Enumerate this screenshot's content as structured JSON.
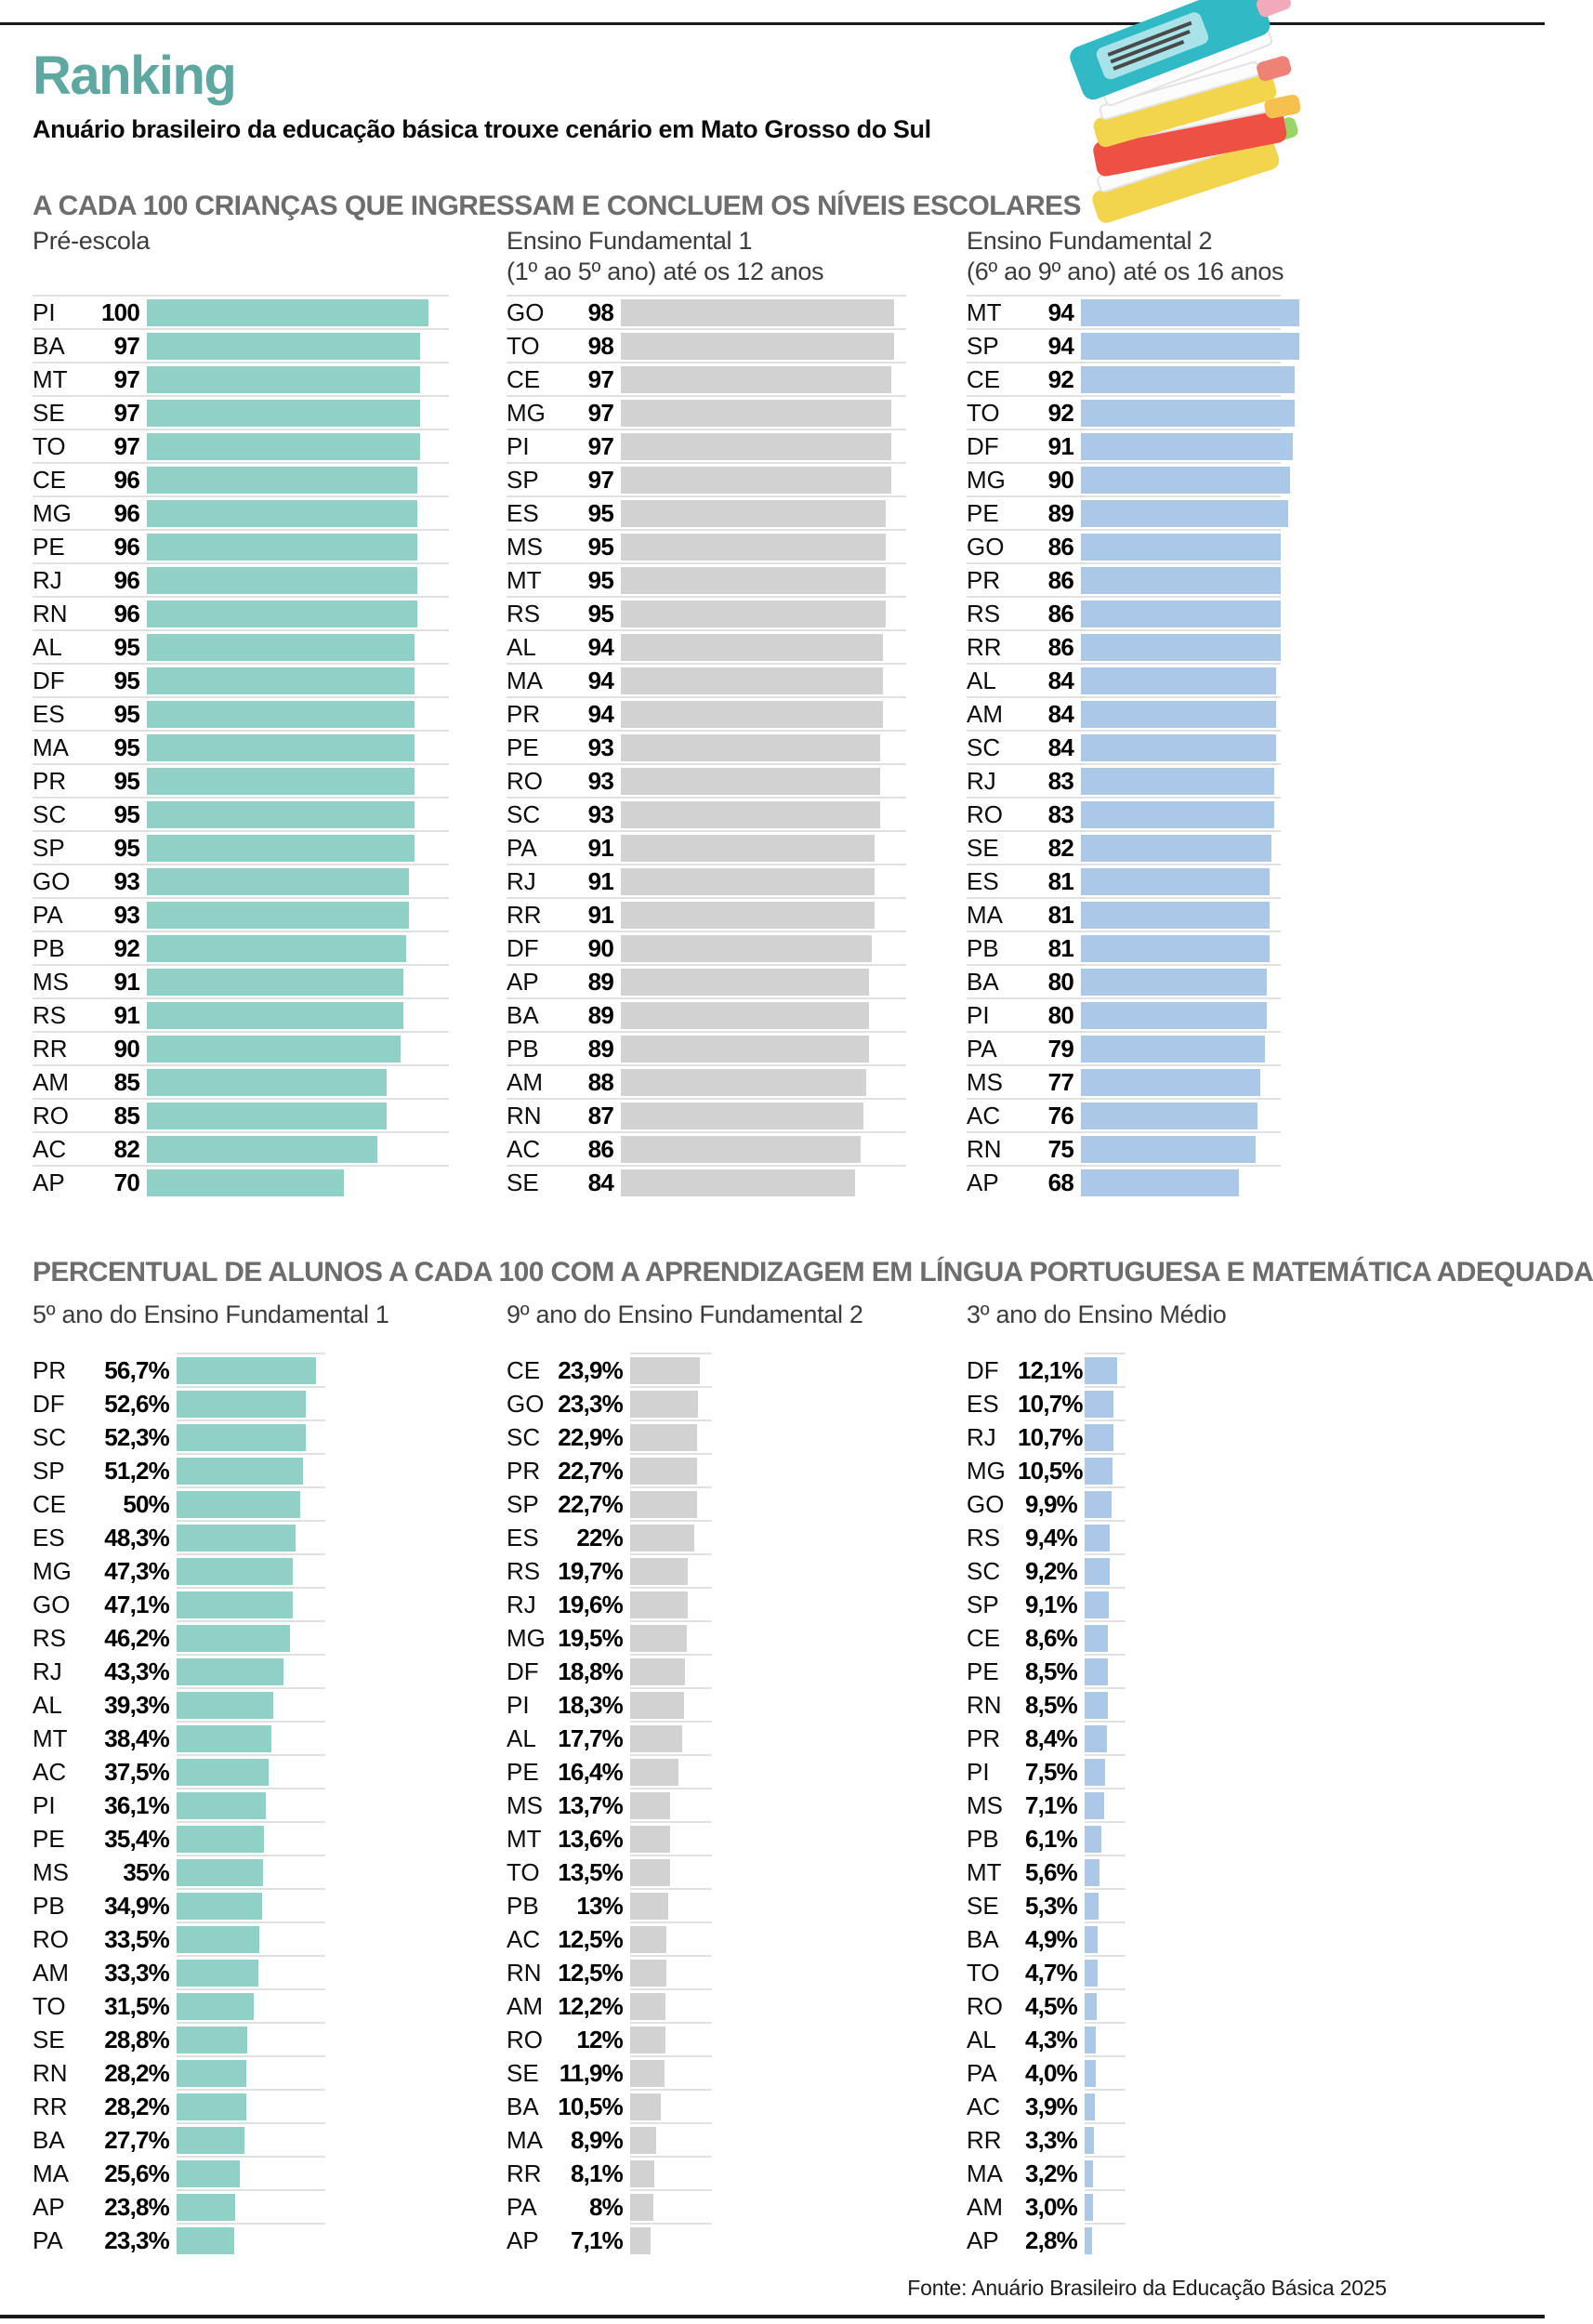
{
  "header": {
    "title": "Ranking",
    "subtitle": "Anuário brasileiro da educação básica trouxe cenário em Mato Grosso do Sul"
  },
  "sections": [
    {
      "heading": "A CADA 100 CRIANÇAS QUE INGRESSAM E CONCLUEM OS NÍVEIS ESCOLARES"
    },
    {
      "heading": "PERCENTUAL DE ALUNOS A CADA 100 COM A APRENDIZAGEM EM LÍNGUA PORTUGUESA E MATEMÁTICA ADEQUADA"
    }
  ],
  "colors": {
    "accent_teal": "#5fa8a1",
    "bar_teal": "#8fd1c6",
    "bar_gray": "#d2d2d2",
    "bar_blue": "#abc8e8",
    "heading_gray": "#6d6d6d",
    "rule_dark": "#191919"
  },
  "icons": {
    "header_illustration": "books-stack-icon"
  },
  "chart_data": [
    {
      "type": "bar",
      "section": 0,
      "title": "Pré-escola",
      "subtitle": "",
      "unit": "per 100",
      "xlim": [
        0,
        100
      ],
      "grid": false,
      "legend": "none",
      "bar_color_key": "bar_teal",
      "categories": [
        "PI",
        "BA",
        "MT",
        "SE",
        "TO",
        "CE",
        "MG",
        "PE",
        "RJ",
        "RN",
        "AL",
        "DF",
        "ES",
        "MA",
        "PR",
        "SC",
        "SP",
        "GO",
        "PA",
        "PB",
        "MS",
        "RS",
        "RR",
        "AM",
        "RO",
        "AC",
        "AP"
      ],
      "values": [
        100,
        97,
        97,
        97,
        97,
        96,
        96,
        96,
        96,
        96,
        95,
        95,
        95,
        95,
        95,
        95,
        95,
        93,
        93,
        92,
        91,
        91,
        90,
        85,
        85,
        82,
        70
      ],
      "value_labels": [
        "100",
        "97",
        "97",
        "97",
        "97",
        "96",
        "96",
        "96",
        "96",
        "96",
        "95",
        "95",
        "95",
        "95",
        "95",
        "95",
        "95",
        "93",
        "93",
        "92",
        "91",
        "91",
        "90",
        "85",
        "85",
        "82",
        "70"
      ]
    },
    {
      "type": "bar",
      "section": 0,
      "title": "Ensino Fundamental 1",
      "subtitle": "(1º ao 5º ano) até os 12 anos",
      "unit": "per 100",
      "xlim": [
        0,
        100
      ],
      "grid": false,
      "legend": "none",
      "bar_color_key": "bar_gray",
      "categories": [
        "GO",
        "TO",
        "CE",
        "MG",
        "PI",
        "SP",
        "ES",
        "MS",
        "MT",
        "RS",
        "AL",
        "MA",
        "PR",
        "PE",
        "RO",
        "SC",
        "PA",
        "RJ",
        "RR",
        "DF",
        "AP",
        "BA",
        "PB",
        "AM",
        "RN",
        "AC",
        "SE"
      ],
      "values": [
        98,
        98,
        97,
        97,
        97,
        97,
        95,
        95,
        95,
        95,
        94,
        94,
        94,
        93,
        93,
        93,
        91,
        91,
        91,
        90,
        89,
        89,
        89,
        88,
        87,
        86,
        84
      ],
      "value_labels": [
        "98",
        "98",
        "97",
        "97",
        "97",
        "97",
        "95",
        "95",
        "95",
        "95",
        "94",
        "94",
        "94",
        "93",
        "93",
        "93",
        "91",
        "91",
        "91",
        "90",
        "89",
        "89",
        "89",
        "88",
        "87",
        "86",
        "84"
      ]
    },
    {
      "type": "bar",
      "section": 0,
      "title": "Ensino Fundamental 2",
      "subtitle": "(6º ao 9º ano) até os 16 anos",
      "unit": "per 100",
      "xlim": [
        0,
        100
      ],
      "grid": false,
      "legend": "none",
      "bar_color_key": "bar_blue",
      "categories": [
        "MT",
        "SP",
        "CE",
        "TO",
        "DF",
        "MG",
        "PE",
        "GO",
        "PR",
        "RS",
        "RR",
        "AL",
        "AM",
        "SC",
        "RJ",
        "RO",
        "SE",
        "ES",
        "MA",
        "PB",
        "BA",
        "PI",
        "PA",
        "MS",
        "AC",
        "RN",
        "AP"
      ],
      "values": [
        94,
        94,
        92,
        92,
        91,
        90,
        89,
        86,
        86,
        86,
        86,
        84,
        84,
        84,
        83,
        83,
        82,
        81,
        81,
        81,
        80,
        80,
        79,
        77,
        76,
        75,
        68
      ],
      "value_labels": [
        "94",
        "94",
        "92",
        "92",
        "91",
        "90",
        "89",
        "86",
        "86",
        "86",
        "86",
        "84",
        "84",
        "84",
        "83",
        "83",
        "82",
        "81",
        "81",
        "81",
        "80",
        "80",
        "79",
        "77",
        "76",
        "75",
        "68"
      ]
    },
    {
      "type": "bar",
      "section": 1,
      "title": "5º ano do Ensino Fundamental 1",
      "subtitle": "",
      "unit": "%",
      "xlim": [
        0,
        60
      ],
      "grid": false,
      "legend": "none",
      "bar_color_key": "bar_teal",
      "categories": [
        "PR",
        "DF",
        "SC",
        "SP",
        "CE",
        "ES",
        "MG",
        "GO",
        "RS",
        "RJ",
        "AL",
        "MT",
        "AC",
        "PI",
        "PE",
        "MS",
        "PB",
        "RO",
        "AM",
        "TO",
        "SE",
        "RN",
        "RR",
        "BA",
        "MA",
        "AP",
        "PA"
      ],
      "values": [
        56.7,
        52.6,
        52.3,
        51.2,
        50,
        48.3,
        47.3,
        47.1,
        46.2,
        43.3,
        39.3,
        38.4,
        37.5,
        36.1,
        35.4,
        35,
        34.9,
        33.5,
        33.3,
        31.5,
        28.8,
        28.2,
        28.2,
        27.7,
        25.6,
        23.8,
        23.3
      ],
      "value_labels": [
        "56,7%",
        "52,6%",
        "52,3%",
        "51,2%",
        "50%",
        "48,3%",
        "47,3%",
        "47,1%",
        "46,2%",
        "43,3%",
        "39,3%",
        "38,4%",
        "37,5%",
        "36,1%",
        "35,4%",
        "35%",
        "34,9%",
        "33,5%",
        "33,3%",
        "31,5%",
        "28,8%",
        "28,2%",
        "28,2%",
        "27,7%",
        "25,6%",
        "23,8%",
        "23,3%"
      ]
    },
    {
      "type": "bar",
      "section": 1,
      "title": "9º ano do Ensino Fundamental 2",
      "subtitle": "",
      "unit": "%",
      "xlim": [
        0,
        25
      ],
      "grid": false,
      "legend": "none",
      "bar_color_key": "bar_gray",
      "categories": [
        "CE",
        "GO",
        "SC",
        "PR",
        "SP",
        "ES",
        "RS",
        "RJ",
        "MG",
        "DF",
        "PI",
        "AL",
        "PE",
        "MS",
        "MT",
        "TO",
        "PB",
        "AC",
        "RN",
        "AM",
        "RO",
        "SE",
        "BA",
        "MA",
        "RR",
        "PA",
        "AP"
      ],
      "values": [
        23.9,
        23.3,
        22.9,
        22.7,
        22.7,
        22,
        19.7,
        19.6,
        19.5,
        18.8,
        18.3,
        17.7,
        16.4,
        13.7,
        13.6,
        13.5,
        13,
        12.5,
        12.5,
        12.2,
        12,
        11.9,
        10.5,
        8.9,
        8.1,
        8,
        7.1
      ],
      "value_labels": [
        "23,9%",
        "23,3%",
        "22,9%",
        "22,7%",
        "22,7%",
        "22%",
        "19,7%",
        "19,6%",
        "19,5%",
        "18,8%",
        "18,3%",
        "17,7%",
        "16,4%",
        "13,7%",
        "13,6%",
        "13,5%",
        "13%",
        "12,5%",
        "12,5%",
        "12,2%",
        "12%",
        "11,9%",
        "10,5%",
        "8,9%",
        "8,1%",
        "8%",
        "7,1%"
      ]
    },
    {
      "type": "bar",
      "section": 1,
      "title": "3º ano do Ensino Médio",
      "subtitle": "",
      "unit": "%",
      "xlim": [
        0,
        13
      ],
      "grid": false,
      "legend": "none",
      "bar_color_key": "bar_blue",
      "categories": [
        "DF",
        "ES",
        "RJ",
        "MG",
        "GO",
        "RS",
        "SC",
        "SP",
        "CE",
        "PE",
        "RN",
        "PR",
        "PI",
        "MS",
        "PB",
        "MT",
        "SE",
        "BA",
        "TO",
        "RO",
        "AL",
        "PA",
        "AC",
        "RR",
        "MA",
        "AM",
        "AP"
      ],
      "values": [
        12.1,
        10.7,
        10.7,
        10.5,
        9.9,
        9.4,
        9.2,
        9.1,
        8.6,
        8.5,
        8.5,
        8.4,
        7.5,
        7.1,
        6.1,
        5.6,
        5.3,
        4.9,
        4.7,
        4.5,
        4.3,
        4.0,
        3.9,
        3.3,
        3.2,
        3.0,
        2.8
      ],
      "value_labels": [
        "12,1%",
        "10,7%",
        "10,7%",
        "10,5%",
        "9,9%",
        "9,4%",
        "9,2%",
        "9,1%",
        "8,6%",
        "8,5%",
        "8,5%",
        "8,4%",
        "7,5%",
        "7,1%",
        "6,1%",
        "5,6%",
        "5,3%",
        "4,9%",
        "4,7%",
        "4,5%",
        "4,3%",
        "4,0%",
        "3,9%",
        "3,3%",
        "3,2%",
        "3,0%",
        "2,8%"
      ]
    }
  ],
  "footer": {
    "source": "Fonte: Anuário Brasileiro da Educação Básica 2025"
  }
}
